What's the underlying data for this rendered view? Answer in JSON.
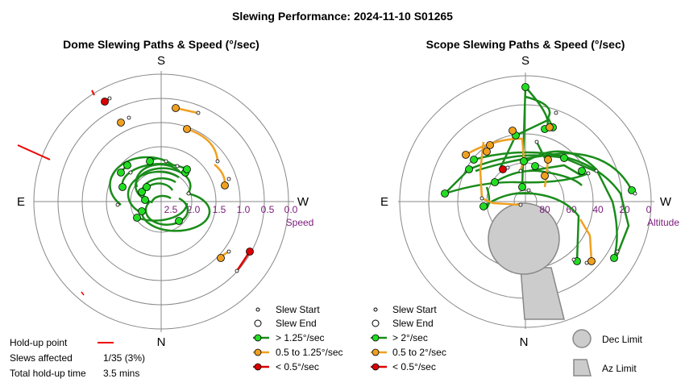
{
  "title": "Slewing Performance: 2024-11-10 S01265",
  "colors": {
    "fast": "#1a8c1a",
    "fast_marker": "#22dd22",
    "medium": "#f0a020",
    "slow": "#dd0000",
    "ring": "#888888",
    "tick_label": "#7a1a7a",
    "limit_fill": "#cccccc"
  },
  "dome": {
    "subtitle": "Dome Slewing Paths & Speed (°/sec)",
    "compass": {
      "n": "N",
      "s": "S",
      "e": "E",
      "w": "W"
    },
    "axis_name": "Speed",
    "ticks": [
      "2.5",
      "2.0",
      "1.5",
      "1.0",
      "0.5",
      "0.0"
    ],
    "legend": {
      "slew_start": "Slew Start",
      "slew_end": "Slew End",
      "fast": "> 1.25°/sec",
      "medium": "0.5 to 1.25°/sec",
      "slow": "< 0.5°/sec"
    },
    "holdup": {
      "point_label": "Hold-up point",
      "slews_label": "Slews affected",
      "slews_value": "1/35 (3%)",
      "time_label": "Total hold-up time",
      "time_value": "3.5 mins"
    }
  },
  "scope": {
    "subtitle": "Scope Slewing Paths & Speed (°/sec)",
    "compass": {
      "n": "N",
      "s": "S",
      "e": "E",
      "w": "W"
    },
    "axis_name": "Altitude",
    "ticks": [
      "80",
      "60",
      "40",
      "20",
      "0"
    ],
    "legend": {
      "slew_start": "Slew Start",
      "slew_end": "Slew End",
      "fast": "> 2°/sec",
      "medium": "0.5 to 2°/sec",
      "slow": "< 0.5°/sec",
      "dec_limit": "Dec Limit",
      "az_limit": "Az Limit"
    }
  },
  "chart_data": [
    {
      "type": "scatter",
      "title": "Dome Slewing Paths & Speed (°/sec)",
      "projection": "polar",
      "radial_axis": {
        "label": "Speed",
        "range": [
          2.5,
          0.0
        ],
        "ticks": [
          2.5,
          2.0,
          1.5,
          1.0,
          0.5,
          0.0
        ]
      },
      "series": [
        {
          "name": "> 1.25°/sec",
          "color": "#1a8c1a",
          "paths": 24
        },
        {
          "name": "0.5 to 1.25°/sec",
          "color": "#f0a020",
          "paths": 7
        },
        {
          "name": "< 0.5°/sec",
          "color": "#dd0000",
          "paths": 2
        }
      ],
      "holdups": 1
    },
    {
      "type": "scatter",
      "title": "Scope Slewing Paths & Speed (°/sec)",
      "projection": "polar",
      "radial_axis": {
        "label": "Altitude",
        "range": [
          90,
          0
        ],
        "ticks": [
          80,
          60,
          40,
          20,
          0
        ]
      },
      "series": [
        {
          "name": "> 2°/sec",
          "color": "#1a8c1a",
          "paths": 20
        },
        {
          "name": "0.5 to 2°/sec",
          "color": "#f0a020",
          "paths": 5
        },
        {
          "name": "< 0.5°/sec",
          "color": "#dd0000",
          "paths": 1
        }
      ]
    }
  ]
}
